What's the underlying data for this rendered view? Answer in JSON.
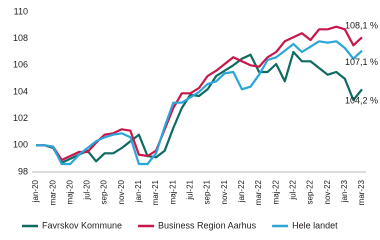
{
  "chart_data": {
    "type": "line",
    "categories": [
      "jan-20",
      null,
      "mar-20",
      null,
      "maj-20",
      null,
      "jul-20",
      null,
      "sep-20",
      null,
      "nov-20",
      null,
      "jan-21",
      null,
      "mar-21",
      null,
      "maj-21",
      null,
      "jul-21",
      null,
      "sep-21",
      null,
      "nov-21",
      null,
      "jan-22",
      null,
      "mar-22",
      null,
      "maj-22",
      null,
      "jul-22",
      null,
      "sep-22",
      null,
      "nov-22",
      null,
      "jan-23",
      null,
      "mar-23"
    ],
    "series": [
      {
        "name": "Favrskov Kommune",
        "color": "#0f6a62",
        "end_label": "104,2 %",
        "values": [
          100,
          100,
          99.8,
          98.7,
          99.0,
          99.3,
          99.6,
          98.8,
          99.4,
          99.4,
          99.8,
          100.3,
          100.8,
          99.2,
          99.1,
          99.6,
          101.3,
          102.8,
          103.8,
          103.7,
          104.2,
          105.2,
          105.6,
          106.0,
          106.5,
          106.8,
          105.5,
          105.5,
          106.1,
          104.8,
          107.0,
          106.3,
          106.3,
          105.8,
          105.3,
          105.5,
          105.0,
          103.4,
          104.2
        ]
      },
      {
        "name": "Business Region Aarhus",
        "color": "#c8184a",
        "end_label": "108,1 %",
        "values": [
          100,
          100,
          99.9,
          98.9,
          99.2,
          99.5,
          99.5,
          100.2,
          100.8,
          100.9,
          101.2,
          101.1,
          99.3,
          99.2,
          99.6,
          101.2,
          102.8,
          103.9,
          103.9,
          104.3,
          105.2,
          105.6,
          106.1,
          106.6,
          106.3,
          106.0,
          105.9,
          106.6,
          107.0,
          107.8,
          108.1,
          108.4,
          107.9,
          108.7,
          108.7,
          108.9,
          108.7,
          107.5,
          108.1
        ]
      },
      {
        "name": "Hele landet",
        "color": "#2ba6d8",
        "end_label": "107,1 %",
        "values": [
          100,
          100,
          99.9,
          98.6,
          98.6,
          99.3,
          99.8,
          100.3,
          100.6,
          100.8,
          100.9,
          100.6,
          98.6,
          98.6,
          99.4,
          101.4,
          103.2,
          103.2,
          103.6,
          104.0,
          104.6,
          104.8,
          105.4,
          105.5,
          104.2,
          104.4,
          105.3,
          106.4,
          106.6,
          107.1,
          107.6,
          107.0,
          107.4,
          107.8,
          107.7,
          107.8,
          107.3,
          106.5,
          107.1
        ]
      }
    ],
    "ylim": [
      98,
      110
    ],
    "yticks": [
      98,
      100,
      102,
      104,
      106,
      108,
      110
    ],
    "grid": false,
    "legend": "bottom"
  }
}
